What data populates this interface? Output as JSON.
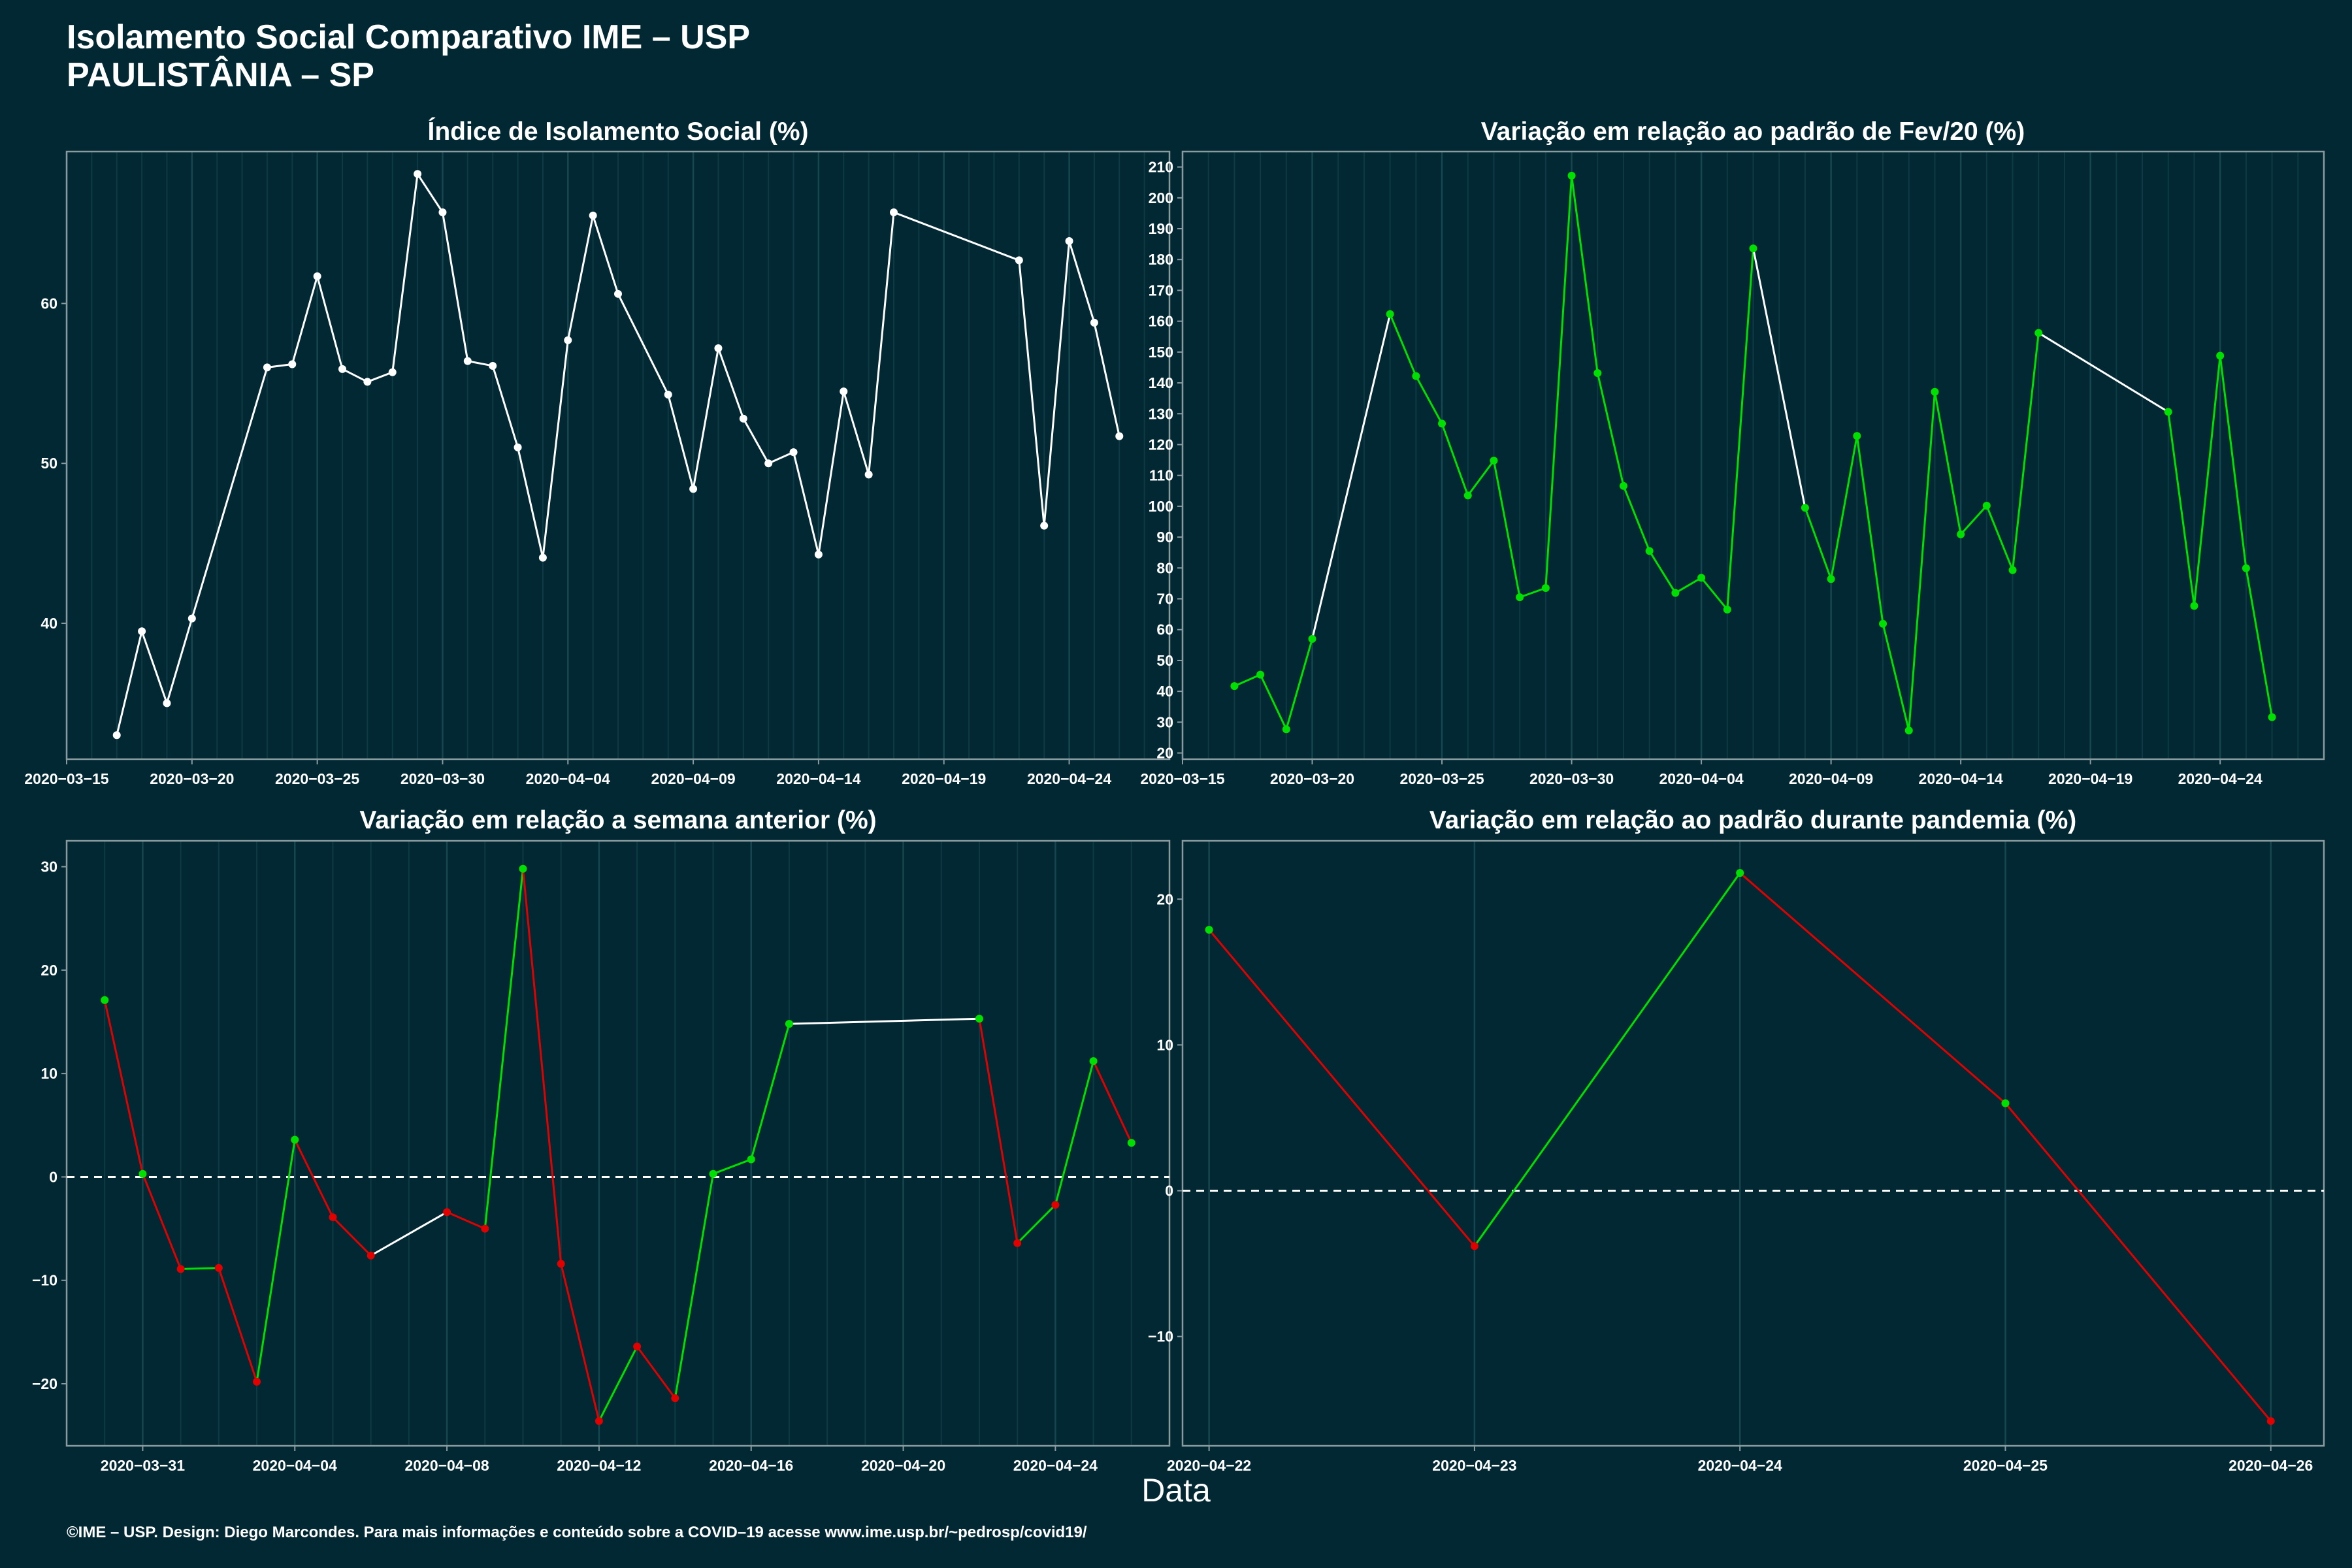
{
  "header": {
    "title_line1": "Isolamento Social Comparativo IME – USP",
    "title_line2": "PAULISTÂNIA – SP"
  },
  "x_axis_title": "Data",
  "footer": "©IME – USP. Design: Diego Marcondes. Para mais informações e conteúdo sobre a COVID–19 acesse www.ime.usp.br/~pedrosp/covid19/",
  "colors": {
    "background": "#022833",
    "neutral": "#ffffff",
    "up": "#00e000",
    "down": "#e00000"
  },
  "chart_data": [
    {
      "type": "line",
      "title": "Índice de Isolamento Social (%)",
      "x_kind": "date",
      "xlim": [
        "2020-03-15",
        "2020-04-28"
      ],
      "ylim": [
        31.5,
        69.5
      ],
      "x_ticks": [
        "2020-03-15",
        "2020-03-20",
        "2020-03-25",
        "2020-03-30",
        "2020-04-04",
        "2020-04-09",
        "2020-04-14",
        "2020-04-19",
        "2020-04-24"
      ],
      "y_ticks": [
        40,
        50,
        60
      ],
      "grid": true,
      "series": [
        {
          "color_mode": "neutral",
          "points": [
            {
              "x": "2020-03-17",
              "y": 33.0
            },
            {
              "x": "2020-03-18",
              "y": 39.5
            },
            {
              "x": "2020-03-19",
              "y": 35.0
            },
            {
              "x": "2020-03-20",
              "y": 40.3
            },
            {
              "x": "2020-03-23",
              "y": 56.0
            },
            {
              "x": "2020-03-24",
              "y": 56.2
            },
            {
              "x": "2020-03-25",
              "y": 61.7
            },
            {
              "x": "2020-03-26",
              "y": 55.9
            },
            {
              "x": "2020-03-27",
              "y": 55.1
            },
            {
              "x": "2020-03-28",
              "y": 55.7
            },
            {
              "x": "2020-03-29",
              "y": 68.1
            },
            {
              "x": "2020-03-30",
              "y": 65.7
            },
            {
              "x": "2020-03-31",
              "y": 56.4
            },
            {
              "x": "2020-04-01",
              "y": 56.1
            },
            {
              "x": "2020-04-02",
              "y": 51.0
            },
            {
              "x": "2020-04-03",
              "y": 44.1
            },
            {
              "x": "2020-04-04",
              "y": 57.7
            },
            {
              "x": "2020-04-05",
              "y": 65.5
            },
            {
              "x": "2020-04-06",
              "y": 60.6
            },
            {
              "x": "2020-04-08",
              "y": 54.3
            },
            {
              "x": "2020-04-09",
              "y": 48.4
            },
            {
              "x": "2020-04-10",
              "y": 57.2
            },
            {
              "x": "2020-04-11",
              "y": 52.8
            },
            {
              "x": "2020-04-12",
              "y": 50.0
            },
            {
              "x": "2020-04-13",
              "y": 50.7
            },
            {
              "x": "2020-04-14",
              "y": 44.3
            },
            {
              "x": "2020-04-15",
              "y": 54.5
            },
            {
              "x": "2020-04-16",
              "y": 49.3
            },
            {
              "x": "2020-04-17",
              "y": 65.7
            },
            {
              "x": "2020-04-22",
              "y": 62.7
            },
            {
              "x": "2020-04-23",
              "y": 46.1
            },
            {
              "x": "2020-04-24",
              "y": 63.9
            },
            {
              "x": "2020-04-25",
              "y": 58.8
            },
            {
              "x": "2020-04-26",
              "y": 51.7
            }
          ]
        }
      ]
    },
    {
      "type": "line",
      "title": "Variação em relação ao padrão de Fev/20 (%)",
      "x_kind": "date",
      "xlim": [
        "2020-03-15",
        "2020-04-28"
      ],
      "ylim": [
        18,
        215
      ],
      "x_ticks": [
        "2020-03-15",
        "2020-03-20",
        "2020-03-25",
        "2020-03-30",
        "2020-04-04",
        "2020-04-09",
        "2020-04-14",
        "2020-04-19",
        "2020-04-24"
      ],
      "y_ticks": [
        20,
        30,
        40,
        50,
        60,
        70,
        80,
        90,
        100,
        110,
        120,
        130,
        140,
        150,
        160,
        170,
        180,
        190,
        200,
        210
      ],
      "grid": true,
      "series": [
        {
          "color_mode": "direction",
          "points": [
            {
              "x": "2020-03-17",
              "y": 41.7
            },
            {
              "x": "2020-03-18",
              "y": 45.4
            },
            {
              "x": "2020-03-19",
              "y": 27.7
            },
            {
              "x": "2020-03-20",
              "y": 57.0
            },
            {
              "x": "2020-03-23",
              "y": 162.3
            },
            {
              "x": "2020-03-24",
              "y": 142.2
            },
            {
              "x": "2020-03-25",
              "y": 126.8
            },
            {
              "x": "2020-03-26",
              "y": 103.5
            },
            {
              "x": "2020-03-27",
              "y": 114.8
            },
            {
              "x": "2020-03-28",
              "y": 70.5
            },
            {
              "x": "2020-03-29",
              "y": 73.5
            },
            {
              "x": "2020-03-30",
              "y": 207.2
            },
            {
              "x": "2020-03-31",
              "y": 143.2
            },
            {
              "x": "2020-04-01",
              "y": 106.6
            },
            {
              "x": "2020-04-02",
              "y": 85.5
            },
            {
              "x": "2020-04-03",
              "y": 71.9
            },
            {
              "x": "2020-04-04",
              "y": 76.8
            },
            {
              "x": "2020-04-05",
              "y": 66.5
            },
            {
              "x": "2020-04-06",
              "y": 183.6
            },
            {
              "x": "2020-04-08",
              "y": 99.5
            },
            {
              "x": "2020-04-09",
              "y": 76.4
            },
            {
              "x": "2020-04-10",
              "y": 122.8
            },
            {
              "x": "2020-04-11",
              "y": 61.9
            },
            {
              "x": "2020-04-12",
              "y": 27.3
            },
            {
              "x": "2020-04-13",
              "y": 137.1
            },
            {
              "x": "2020-04-14",
              "y": 90.9
            },
            {
              "x": "2020-04-15",
              "y": 100.2
            },
            {
              "x": "2020-04-16",
              "y": 79.3
            },
            {
              "x": "2020-04-17",
              "y": 156.2
            },
            {
              "x": "2020-04-22",
              "y": 130.6
            },
            {
              "x": "2020-04-23",
              "y": 67.7
            },
            {
              "x": "2020-04-24",
              "y": 148.8
            },
            {
              "x": "2020-04-25",
              "y": 79.9
            },
            {
              "x": "2020-04-26",
              "y": 31.6
            }
          ]
        }
      ]
    },
    {
      "type": "line",
      "title": "Variação em relação a semana anterior (%)",
      "x_kind": "date",
      "xlim": [
        "2020-03-29",
        "2020-04-27"
      ],
      "ylim": [
        -26,
        32.5
      ],
      "x_ticks": [
        "2020-03-31",
        "2020-04-04",
        "2020-04-08",
        "2020-04-12",
        "2020-04-16",
        "2020-04-20",
        "2020-04-24"
      ],
      "y_ticks": [
        -20,
        -10,
        0,
        10,
        20,
        30
      ],
      "zero_line": true,
      "grid": true,
      "series": [
        {
          "color_mode": "sign",
          "points": [
            {
              "x": "2020-03-30",
              "y": 17.1
            },
            {
              "x": "2020-03-31",
              "y": 0.3
            },
            {
              "x": "2020-04-01",
              "y": -8.9
            },
            {
              "x": "2020-04-02",
              "y": -8.8
            },
            {
              "x": "2020-04-03",
              "y": -19.8
            },
            {
              "x": "2020-04-04",
              "y": 3.6
            },
            {
              "x": "2020-04-05",
              "y": -3.9
            },
            {
              "x": "2020-04-06",
              "y": -7.6
            },
            {
              "x": "2020-04-08",
              "y": -3.4
            },
            {
              "x": "2020-04-09",
              "y": -5.0
            },
            {
              "x": "2020-04-10",
              "y": 29.8
            },
            {
              "x": "2020-04-11",
              "y": -8.4
            },
            {
              "x": "2020-04-12",
              "y": -23.6
            },
            {
              "x": "2020-04-13",
              "y": -16.4
            },
            {
              "x": "2020-04-14",
              "y": -21.4
            },
            {
              "x": "2020-04-15",
              "y": 0.3
            },
            {
              "x": "2020-04-16",
              "y": 1.7
            },
            {
              "x": "2020-04-17",
              "y": 14.8
            },
            {
              "x": "2020-04-22",
              "y": 15.3
            },
            {
              "x": "2020-04-23",
              "y": -6.4
            },
            {
              "x": "2020-04-24",
              "y": -2.7
            },
            {
              "x": "2020-04-25",
              "y": 11.2
            },
            {
              "x": "2020-04-26",
              "y": 3.3
            }
          ]
        }
      ]
    },
    {
      "type": "line",
      "title": "Variação em relação ao padrão durante pandemia (%)",
      "x_kind": "date",
      "xlim": [
        "2020-04-21.9",
        "2020-04-26.2"
      ],
      "ylim": [
        -17.5,
        24
      ],
      "x_ticks": [
        "2020-04-22",
        "2020-04-23",
        "2020-04-24",
        "2020-04-25",
        "2020-04-26"
      ],
      "y_ticks": [
        -10,
        0,
        10,
        20
      ],
      "zero_line": true,
      "grid": true,
      "series": [
        {
          "color_mode": "sign",
          "points": [
            {
              "x": "2020-04-22",
              "y": 17.9
            },
            {
              "x": "2020-04-23",
              "y": -3.8
            },
            {
              "x": "2020-04-24",
              "y": 21.8
            },
            {
              "x": "2020-04-25",
              "y": 6.0
            },
            {
              "x": "2020-04-26",
              "y": -15.8
            }
          ]
        }
      ]
    }
  ]
}
